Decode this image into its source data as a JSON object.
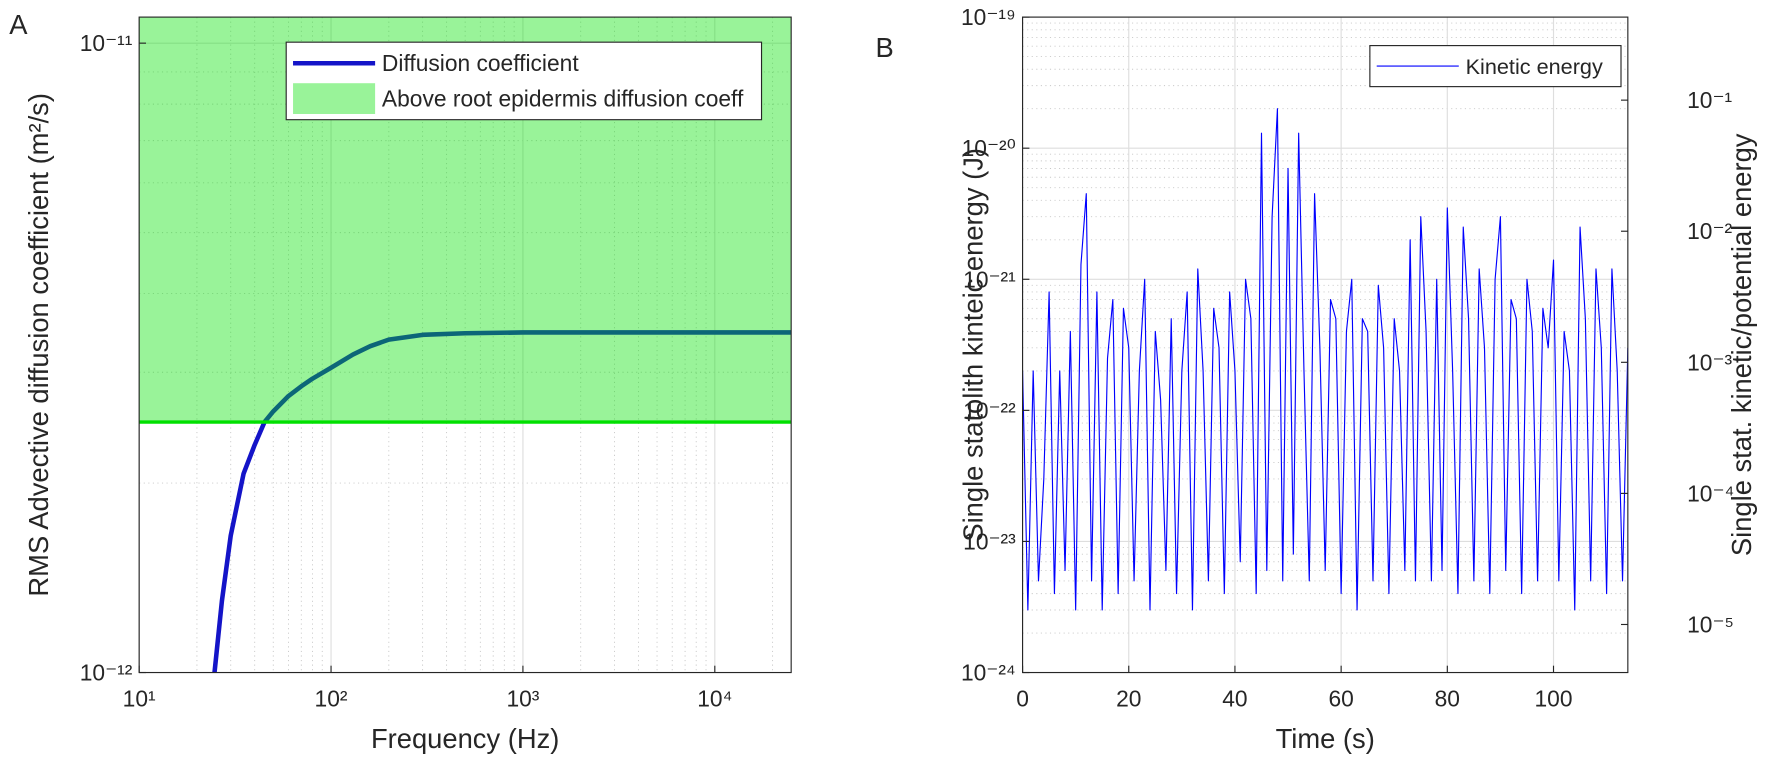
{
  "chart_data": [
    {
      "type": "line",
      "panel_label": "A",
      "xlabel": "Frequency (Hz)",
      "ylabel": "RMS Advective diffusion coefficient (m²/s)",
      "xscale": "log",
      "yscale": "log",
      "xlim": [
        10,
        25000
      ],
      "ylim": [
        1e-12,
        1.1e-11
      ],
      "xticks": [
        {
          "value": 10,
          "label": "10¹"
        },
        {
          "value": 100,
          "label": "10²"
        },
        {
          "value": 1000,
          "label": "10³"
        },
        {
          "value": 10000,
          "label": "10⁴"
        }
      ],
      "yticks": [
        {
          "value": 1e-12,
          "label": "10⁻¹²"
        },
        {
          "value": 1e-11,
          "label": "10⁻¹¹"
        }
      ],
      "grid": true,
      "minor_grid": true,
      "legend": "upper right",
      "x": [
        24.7,
        27,
        30,
        35,
        40,
        45,
        50,
        60,
        70,
        80,
        100,
        130,
        160,
        200,
        300,
        500,
        1000,
        3000,
        10000,
        25000
      ],
      "series": [
        {
          "name": "Diffusion coefficient",
          "color": "#1414c8",
          "values": [
            1e-12,
            1.3e-12,
            1.65e-12,
            2.07e-12,
            2.3e-12,
            2.5e-12,
            2.6e-12,
            2.75e-12,
            2.85e-12,
            2.93e-12,
            3.05e-12,
            3.2e-12,
            3.3e-12,
            3.38e-12,
            3.44e-12,
            3.46e-12,
            3.47e-12,
            3.47e-12,
            3.47e-12,
            3.47e-12
          ]
        }
      ],
      "threshold": {
        "name": "Above root epidermis diffusion coeff",
        "value": 2.5e-12,
        "color": "#00e000",
        "fill_opacity": 0.4
      }
    },
    {
      "type": "line",
      "panel_label": "B",
      "xlabel": "Time (s)",
      "ylabel": "Single statolith kinteic energy (J)",
      "y2label": "Single stat. kinetic/potential energy",
      "xscale": "linear",
      "yscale": "log",
      "y2scale": "log",
      "xlim": [
        0,
        114
      ],
      "ylim": [
        1e-24,
        1e-19
      ],
      "y2lim": [
        4.3e-06,
        0.43
      ],
      "xticks": [
        0,
        20,
        40,
        60,
        80,
        100
      ],
      "yticks": [
        {
          "value": 1e-24,
          "label": "10⁻²⁴"
        },
        {
          "value": 1e-23,
          "label": "10⁻²³"
        },
        {
          "value": 1e-22,
          "label": "10⁻²²"
        },
        {
          "value": 1e-21,
          "label": "10⁻²¹"
        },
        {
          "value": 1e-20,
          "label": "10⁻²⁰"
        },
        {
          "value": 1e-19,
          "label": "10⁻¹⁹"
        }
      ],
      "y2ticks": [
        {
          "value": 1e-05,
          "label": "10⁻⁵"
        },
        {
          "value": 0.0001,
          "label": "10⁻⁴"
        },
        {
          "value": 0.001,
          "label": "10⁻³"
        },
        {
          "value": 0.01,
          "label": "10⁻²"
        },
        {
          "value": 0.1,
          "label": "10⁻¹"
        }
      ],
      "grid": true,
      "minor_grid": true,
      "legend": "upper right",
      "x": [
        0,
        1,
        2,
        3,
        4,
        5,
        6,
        7,
        8,
        9,
        10,
        11,
        12,
        13,
        14,
        15,
        16,
        17,
        18,
        19,
        20,
        21,
        22,
        23,
        24,
        25,
        26,
        27,
        28,
        29,
        30,
        31,
        32,
        33,
        34,
        35,
        36,
        37,
        38,
        39,
        40,
        41,
        42,
        43,
        44,
        45,
        46,
        47,
        48,
        49,
        50,
        51,
        52,
        53,
        54,
        55,
        56,
        57,
        58,
        59,
        60,
        61,
        62,
        63,
        64,
        65,
        66,
        67,
        68,
        69,
        70,
        71,
        72,
        73,
        74,
        75,
        76,
        77,
        78,
        79,
        80,
        81,
        82,
        83,
        84,
        85,
        86,
        87,
        88,
        89,
        90,
        91,
        92,
        93,
        94,
        95,
        96,
        97,
        98,
        99,
        100,
        101,
        102,
        103,
        104,
        105,
        106,
        107,
        108,
        109,
        110,
        111,
        112,
        113,
        114
      ],
      "series": [
        {
          "name": "Kinetic energy",
          "color": "#0000ff",
          "values": [
            2e-22,
            3e-24,
            2e-22,
            5e-24,
            3e-23,
            8e-22,
            4e-24,
            2e-22,
            6e-24,
            4e-22,
            3e-24,
            1.3e-21,
            4.5e-21,
            5e-24,
            8e-22,
            3e-24,
            2.5e-22,
            7e-22,
            4e-24,
            6e-22,
            3e-22,
            5e-24,
            2e-22,
            1e-21,
            3e-24,
            4e-22,
            1.2e-22,
            6e-24,
            5e-22,
            4e-24,
            2e-22,
            8e-22,
            3e-24,
            1.2e-21,
            2e-22,
            5e-24,
            6e-22,
            3e-22,
            4e-24,
            8e-22,
            2e-22,
            7e-24,
            1e-21,
            5e-22,
            4e-24,
            1.3e-20,
            6e-24,
            3e-21,
            2e-20,
            5e-24,
            7e-21,
            8e-24,
            1.3e-20,
            2e-22,
            5e-24,
            4.5e-21,
            3e-22,
            6e-24,
            7e-22,
            5e-22,
            4e-24,
            4e-22,
            1e-21,
            3e-24,
            5e-22,
            4e-22,
            5e-24,
            9e-22,
            3e-22,
            4e-24,
            5e-22,
            2e-22,
            6e-24,
            2e-21,
            5e-24,
            3e-21,
            4e-22,
            5e-24,
            1e-21,
            6e-24,
            3.5e-21,
            2e-22,
            4e-24,
            2.5e-21,
            5e-22,
            5e-24,
            1.2e-21,
            3e-22,
            4e-24,
            1e-21,
            3e-21,
            6e-24,
            7e-22,
            5e-22,
            4e-24,
            1e-21,
            4e-22,
            5e-24,
            6e-22,
            3e-22,
            1.4e-21,
            5e-24,
            4e-22,
            2e-22,
            3e-24,
            2.5e-21,
            5e-22,
            5e-24,
            1.2e-21,
            3e-22,
            4e-24,
            1.2e-21,
            2e-22,
            5e-24,
            3e-22
          ]
        }
      ]
    }
  ]
}
